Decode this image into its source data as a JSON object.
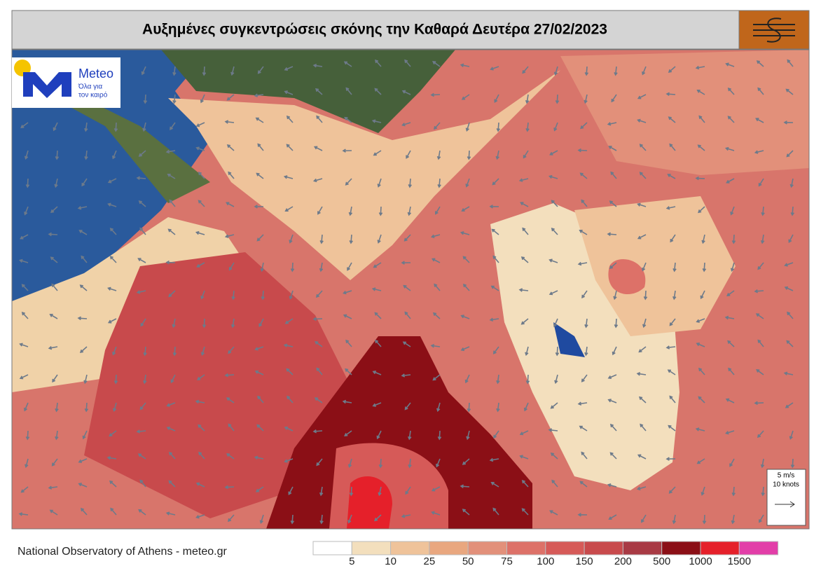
{
  "title": "Αυξημένες συγκεντρώσεις σκόνης την Καθαρά Δευτέρα 27/02/2023",
  "logo": {
    "name": "Meteo",
    "tagline_1": "Όλα για",
    "tagline_2": "τον καιρό"
  },
  "wind_key": {
    "speed": "5 m/s",
    "knots": "10 knots"
  },
  "footer": "National Observatory of Athens - meteo.gr",
  "colorbar": {
    "colors": [
      "#ffffff",
      "#f3dfbd",
      "#efc39a",
      "#e9a77f",
      "#e2907a",
      "#dd7168",
      "#d65a58",
      "#c84a4c",
      "#a83a44",
      "#8b0f16",
      "#e5202a",
      "#e23ea8"
    ],
    "labels": [
      5,
      10,
      25,
      50,
      75,
      100,
      150,
      200,
      500,
      1000,
      1500
    ]
  }
}
